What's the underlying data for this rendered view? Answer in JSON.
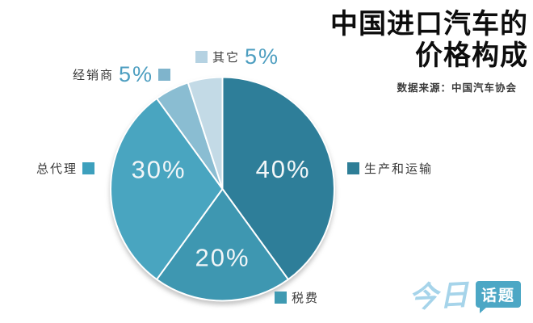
{
  "title": {
    "line1": "中国进口汽车的",
    "line2": "价格构成",
    "source": "数据来源：中国汽车协会"
  },
  "chart_data": {
    "type": "pie",
    "title": "中国进口汽车的价格构成",
    "source": "数据来源：中国汽车协会",
    "center": [
      275.5,
      234
    ],
    "radius": 138.5,
    "start_angle_deg": 0,
    "direction": "clockwise",
    "legend_position": "around",
    "slices": [
      {
        "label": "生产和运输",
        "value": 40,
        "pct_label": "40%",
        "color": "#2e7e99",
        "label_inside": true,
        "label_shift": [
          0,
          0
        ]
      },
      {
        "label": "税费",
        "value": 20,
        "pct_label": "20%",
        "color": "#3e97b1",
        "label_inside": true,
        "label_shift": [
          0,
          6
        ]
      },
      {
        "label": "总代理",
        "value": 30,
        "pct_label": "30%",
        "color": "#49a5c0",
        "label_inside": true,
        "label_shift": [
          0,
          -24
        ]
      },
      {
        "label": "经销商",
        "value": 5,
        "pct_label": "5%",
        "color": "#8abdd2",
        "label_inside": false
      },
      {
        "label": "其它",
        "value": 5,
        "pct_label": "5%",
        "color": "#c3dae6",
        "label_inside": false
      }
    ]
  },
  "legend": {
    "qita": {
      "label": "其它",
      "percent": "5%",
      "swatch_color": "#b5d2e2"
    },
    "jingxiaoshang": {
      "label": "经销商",
      "percent": "5%",
      "swatch_color": "#7fb4cc"
    },
    "zongdaili": {
      "label": "总代理",
      "swatch_color": "#3da0bd"
    },
    "shuifei": {
      "label": "税费",
      "swatch_color": "#3f9ab2"
    },
    "shengchan": {
      "label": "生产和运输",
      "swatch_color": "#2e7e97"
    }
  },
  "logo": {
    "part1": "今日",
    "part2": "话题"
  }
}
